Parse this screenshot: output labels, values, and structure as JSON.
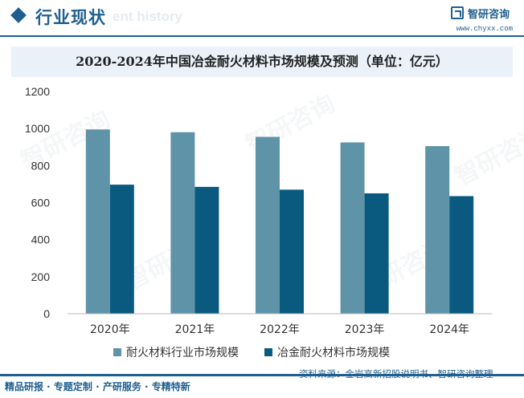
{
  "header": {
    "section_title": "行业现状",
    "ghost_text": "ent history",
    "logo_name": "智研咨询",
    "logo_url": "www.chyxx.com"
  },
  "watermark": {
    "text": "智研咨询"
  },
  "footer": {
    "left_text": "精品研报 · 专题定制 · 产研服务 · 专精特新",
    "source": "资料来源：金岩高新招股说明书、智研咨询整理"
  },
  "colors": {
    "brand": "#1f5f8f",
    "series_1": "#5f93a8",
    "series_2": "#0a5a80",
    "title_bg": "#eaf1f8"
  },
  "chart_data": {
    "type": "bar",
    "title": "2020-2024年中国冶金耐火材料市场规模及预测（单位：亿元）",
    "categories": [
      "2020年",
      "2021年",
      "2022年",
      "2023年",
      "2024年"
    ],
    "series": [
      {
        "name": "耐火材料行业市场规模",
        "values": [
          995,
          980,
          955,
          925,
          905
        ]
      },
      {
        "name": "冶金耐火材料市场规模",
        "values": [
          697,
          685,
          670,
          650,
          635
        ]
      }
    ],
    "ylim": [
      0,
      1200
    ],
    "yticks": [
      0,
      200,
      400,
      600,
      800,
      1000,
      1200
    ],
    "grid": false,
    "legend": "bottom"
  }
}
